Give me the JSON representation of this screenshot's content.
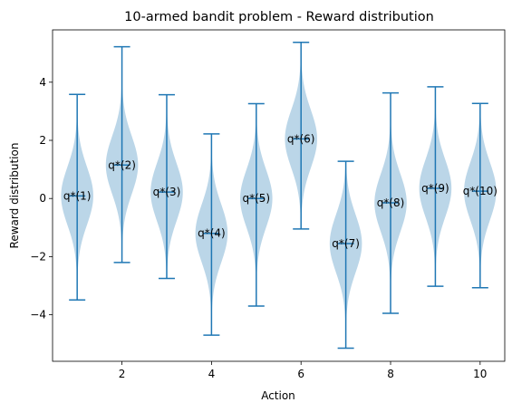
{
  "chart_data": {
    "type": "violin",
    "title": "10-armed bandit problem - Reward distribution",
    "xlabel": "Action",
    "ylabel": "Reward distribution",
    "xlim": [
      0.45,
      10.55
    ],
    "ylim": [
      -5.6,
      5.8
    ],
    "xticks": [
      2,
      4,
      6,
      8,
      10
    ],
    "yticks": [
      -4,
      -2,
      0,
      2,
      4
    ],
    "grid": false,
    "color": "#1f77b4",
    "fill_color": "#1f77b4",
    "fill_opacity": 0.3,
    "actions": [
      {
        "x": 1,
        "label": "q*(1)",
        "mean": 0.09,
        "min": -3.49,
        "max": 3.58
      },
      {
        "x": 2,
        "label": "q*(2)",
        "mean": 1.15,
        "min": -2.2,
        "max": 5.22
      },
      {
        "x": 3,
        "label": "q*(3)",
        "mean": 0.22,
        "min": -2.75,
        "max": 3.57
      },
      {
        "x": 4,
        "label": "q*(4)",
        "mean": -1.2,
        "min": -4.7,
        "max": 2.22
      },
      {
        "x": 5,
        "label": "q*(5)",
        "mean": 0.0,
        "min": -3.7,
        "max": 3.26
      },
      {
        "x": 6,
        "label": "q*(6)",
        "mean": 2.05,
        "min": -1.05,
        "max": 5.37
      },
      {
        "x": 7,
        "label": "q*(7)",
        "mean": -1.55,
        "min": -5.15,
        "max": 1.28
      },
      {
        "x": 8,
        "label": "q*(8)",
        "mean": -0.15,
        "min": -3.95,
        "max": 3.63
      },
      {
        "x": 9,
        "label": "q*(9)",
        "mean": 0.35,
        "min": -3.02,
        "max": 3.84
      },
      {
        "x": 10,
        "label": "q*(10)",
        "mean": 0.25,
        "min": -3.07,
        "max": 3.27
      }
    ]
  }
}
